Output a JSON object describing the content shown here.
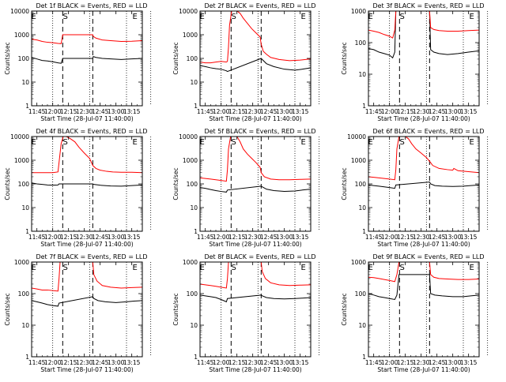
{
  "colors": {
    "events": "#000000",
    "lld": "#ff0000",
    "axes": "#000000",
    "background": "#ffffff"
  },
  "common": {
    "type": "line",
    "ylabel": "Counts/sec",
    "xlabel": "Start Time (28-Jul-07 11:40:00)",
    "x_ticks": [
      "11:45",
      "12:00",
      "12:15",
      "12:30",
      "12:45",
      "13:00",
      "13:15"
    ],
    "x_range_min": [
      -5,
      100
    ],
    "y_scale": "log",
    "y_ticks": [
      "1",
      "10",
      "100",
      "1000",
      "10000"
    ],
    "dotted_lines_min": [
      15,
      50,
      85,
      108
    ],
    "dashed_lines_min": [
      24.5,
      53
    ],
    "markers": [
      {
        "label": "E",
        "min": -3
      },
      {
        "label": "S",
        "min": 27
      },
      {
        "label": "E",
        "min": 93
      }
    ]
  },
  "chart_data": [
    {
      "title": "Det 1f BLACK = Events, RED = LLD",
      "ylim": [
        1,
        10000
      ],
      "series": [
        {
          "name": "Events",
          "color": "#000000",
          "x": [
            -5,
            0,
            5,
            10,
            15,
            20,
            23,
            24.5,
            53,
            53.5,
            56,
            62,
            70,
            80,
            90,
            100
          ],
          "y": [
            110,
            95,
            82,
            78,
            72,
            65,
            62,
            100,
            100,
            120,
            110,
            100,
            95,
            90,
            95,
            100
          ]
        },
        {
          "name": "LLD",
          "color": "#ff0000",
          "x": [
            -5,
            0,
            5,
            10,
            15,
            20,
            23,
            24.5,
            53,
            53.5,
            56,
            62,
            70,
            80,
            90,
            100
          ],
          "y": [
            650,
            600,
            520,
            480,
            460,
            430,
            420,
            1000,
            1000,
            850,
            720,
            600,
            560,
            520,
            530,
            560
          ]
        }
      ]
    },
    {
      "title": "Det 2f BLACK = Events, RED = LLD",
      "ylim": [
        1,
        10000
      ],
      "series": [
        {
          "name": "Events",
          "color": "#000000",
          "x": [
            -5,
            0,
            5,
            10,
            15,
            20,
            21,
            53,
            54,
            58,
            65,
            75,
            85,
            92,
            100
          ],
          "y": [
            50,
            45,
            40,
            37,
            35,
            30,
            28,
            100,
            90,
            60,
            45,
            35,
            32,
            35,
            40
          ]
        },
        {
          "name": "LLD",
          "color": "#ff0000",
          "x": [
            -5,
            0,
            5,
            10,
            15,
            20,
            21,
            22,
            23,
            25,
            28,
            30,
            33,
            36,
            40,
            44,
            48,
            52,
            53,
            55,
            58,
            62,
            70,
            80,
            90,
            100
          ],
          "y": [
            70,
            65,
            65,
            70,
            75,
            70,
            75,
            300,
            2500,
            10000,
            10000,
            10000,
            8000,
            5000,
            3000,
            1800,
            1200,
            800,
            400,
            200,
            150,
            110,
            90,
            80,
            85,
            95
          ]
        }
      ]
    },
    {
      "title": "Det 3f BLACK = Events, RED = LLD",
      "ylim": [
        1,
        1000
      ],
      "series": [
        {
          "name": "Events",
          "color": "#000000",
          "x": [
            -5,
            0,
            5,
            10,
            15,
            18,
            20,
            21,
            53,
            54,
            57,
            62,
            70,
            80,
            90,
            100
          ],
          "y": [
            65,
            60,
            50,
            45,
            40,
            33,
            50,
            1000,
            1000,
            60,
            50,
            45,
            42,
            45,
            50,
            55
          ]
        },
        {
          "name": "LLD",
          "color": "#ff0000",
          "x": [
            -5,
            0,
            5,
            10,
            15,
            18,
            20,
            21,
            53,
            54,
            57,
            62,
            70,
            80,
            90,
            100
          ],
          "y": [
            250,
            230,
            210,
            180,
            160,
            140,
            250,
            1000,
            1000,
            300,
            260,
            240,
            230,
            230,
            240,
            250
          ]
        }
      ]
    },
    {
      "title": "Det 4f BLACK = Events, RED = LLD",
      "ylim": [
        1,
        10000
      ],
      "series": [
        {
          "name": "Events",
          "color": "#000000",
          "x": [
            -5,
            0,
            5,
            10,
            15,
            20,
            21,
            53,
            54,
            60,
            70,
            80,
            90,
            100
          ],
          "y": [
            110,
            100,
            95,
            90,
            88,
            90,
            100,
            100,
            95,
            88,
            82,
            80,
            85,
            90
          ]
        },
        {
          "name": "LLD",
          "color": "#ff0000",
          "x": [
            -5,
            0,
            5,
            10,
            15,
            20,
            21,
            23,
            25,
            28,
            32,
            36,
            40,
            45,
            50,
            53,
            56,
            60,
            66,
            72,
            80,
            90,
            100
          ],
          "y": [
            300,
            300,
            300,
            300,
            300,
            320,
            800,
            5000,
            10000,
            10000,
            8000,
            6000,
            3500,
            2000,
            1200,
            600,
            450,
            380,
            340,
            320,
            310,
            310,
            300
          ]
        }
      ]
    },
    {
      "title": "Det 5f BLACK = Events, RED = LLD",
      "ylim": [
        1,
        10000
      ],
      "series": [
        {
          "name": "Events",
          "color": "#000000",
          "x": [
            -5,
            0,
            5,
            10,
            15,
            20,
            21,
            53,
            54,
            58,
            65,
            75,
            85,
            92,
            100
          ],
          "y": [
            70,
            65,
            58,
            52,
            48,
            45,
            55,
            80,
            75,
            60,
            52,
            48,
            50,
            55,
            60
          ]
        },
        {
          "name": "LLD",
          "color": "#ff0000",
          "x": [
            -5,
            0,
            5,
            10,
            15,
            20,
            21,
            22,
            24,
            27,
            30,
            33,
            36,
            40,
            44,
            48,
            52,
            53,
            56,
            62,
            70,
            80,
            90,
            100
          ],
          "y": [
            180,
            170,
            160,
            150,
            140,
            130,
            400,
            3000,
            10000,
            10000,
            10000,
            6000,
            3000,
            1800,
            1200,
            800,
            500,
            300,
            200,
            160,
            150,
            150,
            155,
            160
          ]
        }
      ]
    },
    {
      "title": "Det 6f BLACK = Events, RED = LLD",
      "ylim": [
        1,
        10000
      ],
      "series": [
        {
          "name": "Events",
          "color": "#000000",
          "x": [
            -5,
            0,
            5,
            10,
            15,
            20,
            21,
            53,
            54,
            58,
            65,
            75,
            85,
            92,
            100
          ],
          "y": [
            90,
            85,
            80,
            75,
            70,
            65,
            90,
            120,
            100,
            85,
            80,
            78,
            80,
            85,
            90
          ]
        },
        {
          "name": "LLD",
          "color": "#ff0000",
          "x": [
            -5,
            0,
            5,
            10,
            15,
            20,
            21,
            22,
            24,
            27,
            30,
            33,
            36,
            40,
            45,
            50,
            53,
            56,
            62,
            70,
            75,
            76,
            80,
            90,
            100
          ],
          "y": [
            200,
            190,
            180,
            170,
            160,
            150,
            400,
            3000,
            10000,
            10000,
            10000,
            8000,
            5000,
            3000,
            2000,
            1300,
            900,
            600,
            450,
            400,
            380,
            450,
            360,
            330,
            300
          ]
        }
      ]
    },
    {
      "title": "Det 7f BLACK = Events, RED = LLD",
      "ylim": [
        1,
        1000
      ],
      "series": [
        {
          "name": "Events",
          "color": "#000000",
          "x": [
            -5,
            0,
            5,
            10,
            15,
            20,
            21,
            53,
            54,
            58,
            65,
            75,
            85,
            92,
            100
          ],
          "y": [
            60,
            55,
            50,
            45,
            42,
            40,
            50,
            80,
            70,
            60,
            55,
            52,
            55,
            58,
            60
          ]
        },
        {
          "name": "LLD",
          "color": "#ff0000",
          "x": [
            -5,
            0,
            5,
            10,
            15,
            20,
            21,
            22,
            53,
            54,
            57,
            62,
            70,
            80,
            90,
            100
          ],
          "y": [
            150,
            140,
            130,
            130,
            125,
            120,
            300,
            1000,
            1000,
            400,
            250,
            180,
            160,
            150,
            155,
            160
          ]
        }
      ]
    },
    {
      "title": "Det 8f BLACK = Events, RED = LLD",
      "ylim": [
        1,
        1000
      ],
      "series": [
        {
          "name": "Events",
          "color": "#000000",
          "x": [
            -5,
            0,
            5,
            10,
            15,
            20,
            21,
            53,
            54,
            58,
            65,
            75,
            85,
            92,
            100
          ],
          "y": [
            90,
            85,
            80,
            75,
            65,
            55,
            70,
            90,
            85,
            75,
            70,
            68,
            70,
            72,
            75
          ]
        },
        {
          "name": "LLD",
          "color": "#ff0000",
          "x": [
            -5,
            0,
            5,
            10,
            15,
            20,
            21,
            22,
            53,
            54,
            57,
            62,
            70,
            80,
            90,
            100
          ],
          "y": [
            200,
            190,
            180,
            170,
            160,
            150,
            300,
            1000,
            1000,
            500,
            300,
            220,
            190,
            180,
            185,
            190
          ]
        }
      ]
    },
    {
      "title": "Det 9f BLACK = Events, RED = LLD",
      "ylim": [
        1,
        1000
      ],
      "series": [
        {
          "name": "Events",
          "color": "#000000",
          "x": [
            -5,
            0,
            5,
            10,
            15,
            20,
            22,
            24,
            53,
            54,
            58,
            65,
            75,
            85,
            92,
            100
          ],
          "y": [
            100,
            90,
            80,
            75,
            70,
            65,
            90,
            400,
            400,
            100,
            90,
            85,
            80,
            80,
            85,
            90
          ]
        },
        {
          "name": "LLD",
          "color": "#ff0000",
          "x": [
            -5,
            0,
            5,
            10,
            15,
            20,
            22,
            24,
            53,
            54,
            57,
            62,
            70,
            80,
            90,
            100
          ],
          "y": [
            330,
            320,
            300,
            280,
            260,
            240,
            400,
            1000,
            1000,
            400,
            330,
            300,
            290,
            280,
            280,
            290
          ]
        }
      ]
    }
  ]
}
